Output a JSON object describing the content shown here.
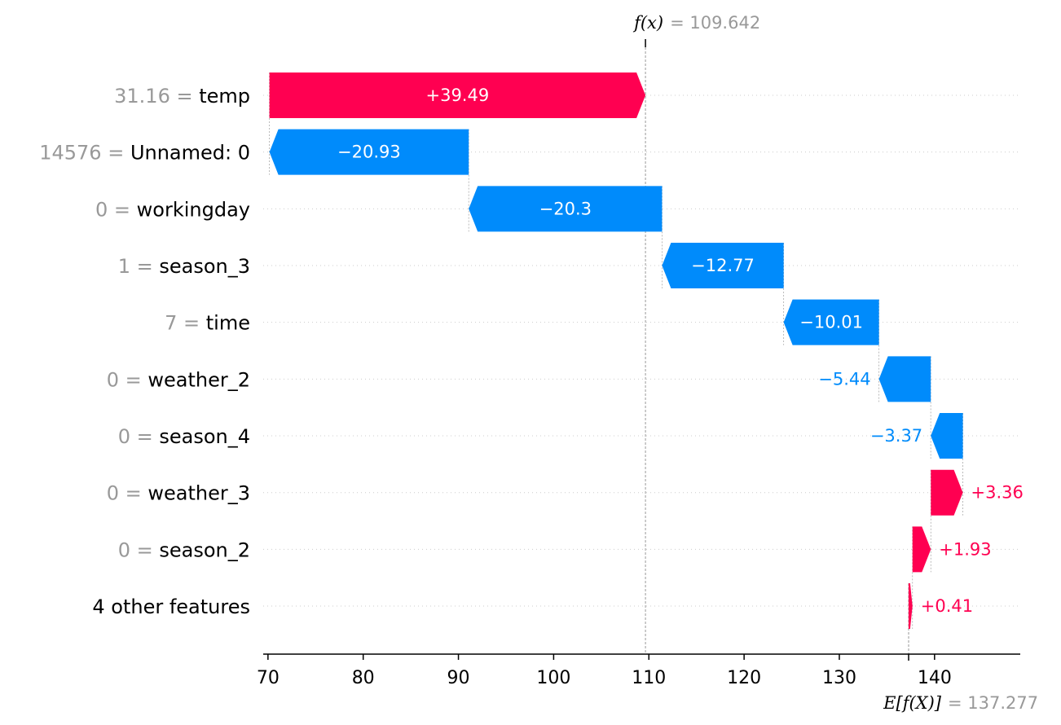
{
  "chart_data": {
    "type": "waterfall",
    "title": "",
    "xlabel": "",
    "ylabel": "",
    "xlim": [
      69.5,
      149
    ],
    "x_ticks": [
      70,
      80,
      90,
      100,
      110,
      120,
      130,
      140
    ],
    "fx": {
      "label": "f(x)",
      "value_text": "= 109.642",
      "value": 109.642
    },
    "efx": {
      "label": "E[f(X)]",
      "value_text": "= 137.277",
      "value": 137.277
    },
    "features": [
      {
        "value": "31.16",
        "name": "temp",
        "shap": 39.49,
        "text": "+39.49"
      },
      {
        "value": "14576",
        "name": "Unnamed: 0",
        "shap": -20.93,
        "text": "−20.93"
      },
      {
        "value": "0",
        "name": "workingday",
        "shap": -20.3,
        "text": "−20.3"
      },
      {
        "value": "1",
        "name": "season_3",
        "shap": -12.77,
        "text": "−12.77"
      },
      {
        "value": "7",
        "name": "time",
        "shap": -10.01,
        "text": "−10.01"
      },
      {
        "value": "0",
        "name": "weather_2",
        "shap": -5.44,
        "text": "−5.44"
      },
      {
        "value": "0",
        "name": "season_4",
        "shap": -3.37,
        "text": "−3.37"
      },
      {
        "value": "0",
        "name": "weather_3",
        "shap": 3.36,
        "text": "+3.36"
      },
      {
        "value": "0",
        "name": "season_2",
        "shap": 1.93,
        "text": "+1.93"
      },
      {
        "value": "",
        "name": "4 other features",
        "shap": 0.41,
        "text": "+0.41"
      }
    ],
    "colors": {
      "positive": "#ff0051",
      "negative": "#008bfb",
      "value_gray": "#999999",
      "grid": "#cccccc"
    },
    "grid": true
  }
}
